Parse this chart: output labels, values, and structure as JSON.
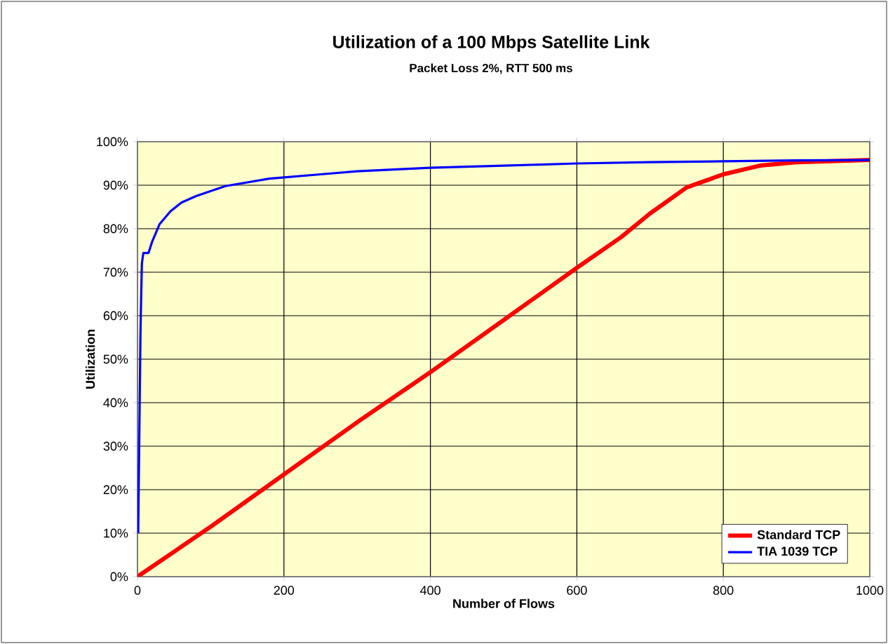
{
  "chart_data": {
    "type": "line",
    "title": "Utilization of a 100 Mbps Satellite Link",
    "subtitle": "Packet Loss 2%, RTT 500 ms",
    "xlabel": "Number of Flows",
    "ylabel": "Utilization",
    "xlim": [
      0,
      1000
    ],
    "xticks": [
      0,
      200,
      400,
      600,
      800,
      1000
    ],
    "ylim": [
      0,
      100
    ],
    "yticks": [
      {
        "value": 0,
        "label": "0%"
      },
      {
        "value": 10,
        "label": "10%"
      },
      {
        "value": 20,
        "label": "20%"
      },
      {
        "value": 30,
        "label": "30%"
      },
      {
        "value": 40,
        "label": "40%"
      },
      {
        "value": 50,
        "label": "50%"
      },
      {
        "value": 60,
        "label": "60%"
      },
      {
        "value": 70,
        "label": "70%"
      },
      {
        "value": 80,
        "label": "80%"
      },
      {
        "value": 90,
        "label": "90%"
      },
      {
        "value": 100,
        "label": "100%"
      }
    ],
    "grid": true,
    "legend": "bottom right",
    "marker": "none",
    "line_style": "solid",
    "series": [
      {
        "name": "Standard TCP",
        "color": "#ff0000",
        "x": [
          0,
          100,
          200,
          300,
          400,
          500,
          600,
          660,
          700,
          750,
          800,
          850,
          900,
          1000
        ],
        "values": [
          0,
          11.5,
          23.5,
          35.5,
          47,
          59,
          71,
          78,
          83.5,
          89.5,
          92.5,
          94.5,
          95.3,
          95.8
        ]
      },
      {
        "name": "TIA 1039 TCP",
        "color": "#0000ff",
        "x": [
          1,
          3,
          4,
          5,
          6,
          8,
          15,
          20,
          30,
          45,
          60,
          80,
          120,
          180,
          250,
          300,
          400,
          500,
          600,
          700,
          800,
          900,
          1000
        ],
        "values": [
          10,
          40,
          55,
          64,
          72,
          74.4,
          74.4,
          77,
          81,
          84,
          86,
          87.5,
          89.8,
          91.5,
          92.5,
          93.2,
          94,
          94.5,
          95,
          95.3,
          95.5,
          95.7,
          95.8
        ]
      }
    ]
  }
}
